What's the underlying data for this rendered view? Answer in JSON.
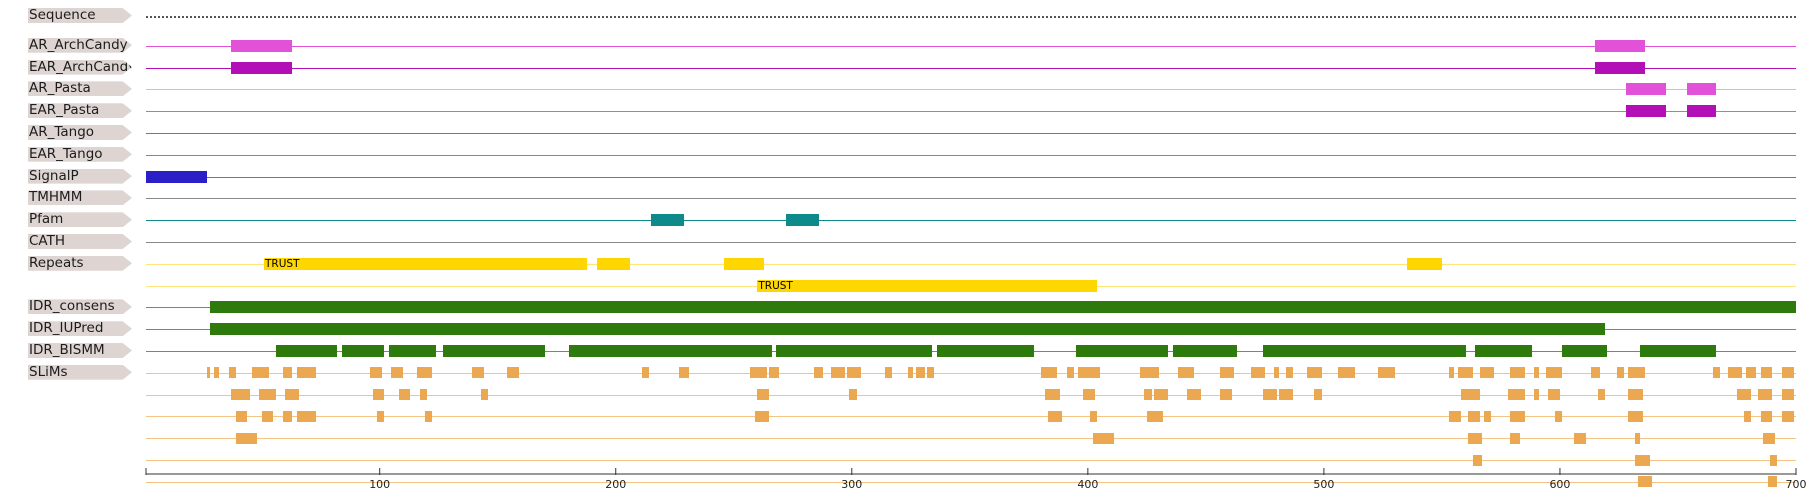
{
  "axis": {
    "min": 1,
    "max": 700,
    "ticks": [
      100,
      200,
      300,
      400,
      500,
      600,
      700
    ],
    "tick_labels": [
      "100",
      "200",
      "300",
      "400",
      "500",
      "600",
      "700"
    ]
  },
  "tracks": [
    {
      "label": "Sequence",
      "color": "#555555",
      "style": "dotted",
      "lanes": [
        []
      ]
    },
    {
      "label": "AR_ArchCandy",
      "color": "#e152d8",
      "lanes": [
        [
          [
            37,
            63
          ],
          [
            615,
            636
          ]
        ]
      ]
    },
    {
      "label": "EAR_ArchCandy",
      "color": "#b20fb6",
      "lanes": [
        [
          [
            37,
            63
          ],
          [
            615,
            636
          ]
        ]
      ]
    },
    {
      "label": "AR_Pasta",
      "color": "#e152d8",
      "line_color": "#f0a6ec",
      "lanes": [
        [
          [
            628,
            645
          ],
          [
            654,
            666
          ]
        ]
      ]
    },
    {
      "label": "EAR_Pasta",
      "color": "#b20fb6",
      "line_color": "#d65fd0",
      "lanes": [
        [
          [
            628,
            645
          ],
          [
            654,
            666
          ]
        ]
      ]
    },
    {
      "label": "AR_Tango",
      "color": "#777777",
      "lanes": [
        []
      ]
    },
    {
      "label": "EAR_Tango",
      "color": "#888888",
      "lanes": [
        []
      ]
    },
    {
      "label": "SignalP",
      "color": "#2b20c8",
      "line_color": "#6d66e0",
      "lanes": [
        [
          [
            1,
            27
          ]
        ]
      ]
    },
    {
      "label": "TMHMM",
      "color": "#888888",
      "lanes": [
        []
      ]
    },
    {
      "label": "Pfam",
      "color": "#0e8a8a",
      "lanes": [
        [
          [
            215,
            229
          ],
          [
            272,
            286
          ]
        ]
      ]
    },
    {
      "label": "CATH",
      "color": "#888888",
      "lanes": [
        []
      ]
    },
    {
      "label": "Repeats",
      "color": "#ffd700",
      "line_color": "#ffe57a",
      "lanes": [
        [
          [
            51,
            188,
            "TRUST"
          ],
          [
            192,
            206
          ],
          [
            246,
            263
          ],
          [
            535,
            550
          ]
        ],
        [
          [
            260,
            404,
            "TRUST"
          ]
        ]
      ]
    },
    {
      "label": "IDR_consens",
      "color": "#2e7a0d",
      "line_color": "#5aa33a",
      "lanes": [
        [
          [
            28,
            700
          ]
        ]
      ]
    },
    {
      "label": "IDR_IUPred",
      "color": "#2e7a0d",
      "line_color": "#5aa33a",
      "lanes": [
        [
          [
            28,
            619
          ]
        ]
      ]
    },
    {
      "label": "IDR_BISMM",
      "color": "#2e7a0d",
      "line_color": "#5aa33a",
      "lanes": [
        [
          [
            56,
            82
          ],
          [
            84,
            102
          ],
          [
            104,
            124
          ],
          [
            127,
            170
          ],
          [
            180,
            266
          ],
          [
            268,
            334
          ],
          [
            336,
            377
          ],
          [
            395,
            434
          ],
          [
            436,
            463
          ],
          [
            474,
            560
          ],
          [
            564,
            588
          ],
          [
            601,
            620
          ],
          [
            634,
            666
          ]
        ]
      ]
    },
    {
      "label": "SLiMs",
      "color": "#eca850",
      "line_color": "#f3c486",
      "lanes": [
        [
          [
            27,
            28
          ],
          [
            30,
            32
          ],
          [
            36,
            39
          ],
          [
            46,
            53
          ],
          [
            59,
            63
          ],
          [
            65,
            73
          ],
          [
            96,
            101
          ],
          [
            105,
            110
          ],
          [
            116,
            122
          ],
          [
            139,
            144
          ],
          [
            154,
            159
          ],
          [
            211,
            214
          ],
          [
            227,
            231
          ],
          [
            257,
            264
          ],
          [
            265,
            269
          ],
          [
            284,
            288
          ],
          [
            291,
            297
          ],
          [
            298,
            304
          ],
          [
            314,
            317
          ],
          [
            324,
            326
          ],
          [
            327,
            331
          ],
          [
            332,
            335
          ],
          [
            380,
            387
          ],
          [
            391,
            394
          ],
          [
            396,
            405
          ],
          [
            422,
            430
          ],
          [
            438,
            445
          ],
          [
            456,
            462
          ],
          [
            469,
            475
          ],
          [
            479,
            481
          ],
          [
            484,
            487
          ],
          [
            493,
            499
          ],
          [
            506,
            513
          ],
          [
            523,
            530
          ],
          [
            553,
            555
          ],
          [
            557,
            563
          ],
          [
            566,
            572
          ],
          [
            579,
            585
          ],
          [
            589,
            591
          ],
          [
            594,
            601
          ],
          [
            613,
            617
          ],
          [
            624,
            627
          ],
          [
            629,
            636
          ],
          [
            665,
            668
          ],
          [
            671,
            677
          ],
          [
            679,
            683
          ],
          [
            685,
            690
          ],
          [
            694,
            699
          ]
        ],
        [
          [
            37,
            45
          ],
          [
            49,
            56
          ],
          [
            60,
            66
          ],
          [
            97,
            102
          ],
          [
            108,
            113
          ],
          [
            117,
            120
          ],
          [
            143,
            146
          ],
          [
            260,
            265
          ],
          [
            299,
            302
          ],
          [
            382,
            388
          ],
          [
            398,
            403
          ],
          [
            424,
            427
          ],
          [
            428,
            434
          ],
          [
            442,
            448
          ],
          [
            456,
            461
          ],
          [
            474,
            480
          ],
          [
            481,
            487
          ],
          [
            496,
            499
          ],
          [
            558,
            566
          ],
          [
            578,
            585
          ],
          [
            589,
            591
          ],
          [
            595,
            600
          ],
          [
            616,
            619
          ],
          [
            629,
            635
          ],
          [
            675,
            681
          ],
          [
            684,
            690
          ],
          [
            694,
            699
          ]
        ],
        [
          [
            39,
            44
          ],
          [
            50,
            55
          ],
          [
            59,
            63
          ],
          [
            65,
            73
          ],
          [
            99,
            102
          ],
          [
            119,
            122
          ],
          [
            259,
            265
          ],
          [
            383,
            389
          ],
          [
            401,
            404
          ],
          [
            425,
            432
          ],
          [
            553,
            558
          ],
          [
            561,
            566
          ],
          [
            568,
            571
          ],
          [
            579,
            585
          ],
          [
            598,
            601
          ],
          [
            629,
            635
          ],
          [
            678,
            681
          ],
          [
            685,
            690
          ],
          [
            694,
            699
          ]
        ],
        [
          [
            39,
            48
          ],
          [
            402,
            411
          ],
          [
            561,
            567
          ],
          [
            579,
            583
          ],
          [
            606,
            611
          ],
          [
            632,
            634
          ],
          [
            686,
            691
          ]
        ],
        [
          [
            563,
            567
          ],
          [
            632,
            638
          ],
          [
            689,
            692
          ]
        ],
        [
          [
            633,
            639
          ],
          [
            688,
            692
          ]
        ]
      ]
    }
  ]
}
